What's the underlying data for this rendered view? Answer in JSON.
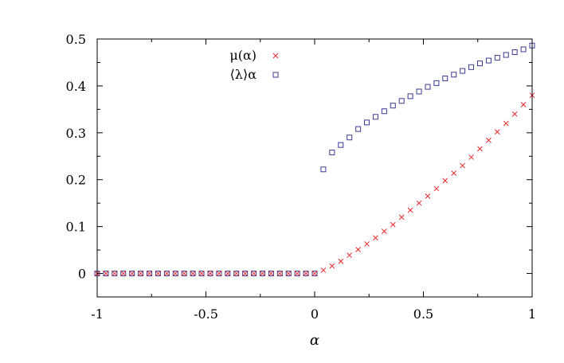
{
  "chart_data": {
    "type": "scatter",
    "title": "",
    "xlabel": "α",
    "ylabel": "",
    "xlim": [
      -1,
      1
    ],
    "ylim": [
      -0.05,
      0.5
    ],
    "x_ticks": [
      "-1",
      "-0.5",
      "0",
      "0.5",
      "1"
    ],
    "y_ticks": [
      "0",
      "0.1",
      "0.2",
      "0.3",
      "0.4",
      "0.5"
    ],
    "grid": false,
    "legend_position": "top-center",
    "series": [
      {
        "name": "μ(α)",
        "marker": "cross",
        "color": "#e8262b",
        "x": [
          -1,
          -0.96,
          -0.92,
          -0.88,
          -0.84,
          -0.8,
          -0.76,
          -0.72,
          -0.68,
          -0.64,
          -0.6,
          -0.56,
          -0.52,
          -0.48,
          -0.44,
          -0.4,
          -0.36,
          -0.32,
          -0.28,
          -0.24,
          -0.2,
          -0.16,
          -0.12,
          -0.08,
          -0.04,
          0,
          0.04,
          0.08,
          0.12,
          0.16,
          0.2,
          0.24,
          0.28,
          0.32,
          0.36,
          0.4,
          0.44,
          0.48,
          0.52,
          0.56,
          0.6,
          0.64,
          0.68,
          0.72,
          0.76,
          0.8,
          0.84,
          0.88,
          0.92,
          0.96,
          1
        ],
        "y": [
          0,
          0,
          0,
          0,
          0,
          0,
          0,
          0,
          0,
          0,
          0,
          0,
          0,
          0,
          0,
          0,
          0,
          0,
          0,
          0,
          0,
          0,
          0,
          0,
          0,
          0,
          0.007,
          0.016,
          0.026,
          0.039,
          0.051,
          0.063,
          0.076,
          0.09,
          0.104,
          0.12,
          0.135,
          0.15,
          0.165,
          0.181,
          0.198,
          0.214,
          0.23,
          0.248,
          0.266,
          0.284,
          0.302,
          0.32,
          0.34,
          0.36,
          0.38
        ]
      },
      {
        "name": "⟨λ⟩α",
        "marker": "square",
        "color": "#3b3b96",
        "x": [
          -1,
          -0.96,
          -0.92,
          -0.88,
          -0.84,
          -0.8,
          -0.76,
          -0.72,
          -0.68,
          -0.64,
          -0.6,
          -0.56,
          -0.52,
          -0.48,
          -0.44,
          -0.4,
          -0.36,
          -0.32,
          -0.28,
          -0.24,
          -0.2,
          -0.16,
          -0.12,
          -0.08,
          -0.04,
          0,
          0.04,
          0.08,
          0.12,
          0.16,
          0.2,
          0.24,
          0.28,
          0.32,
          0.36,
          0.4,
          0.44,
          0.48,
          0.52,
          0.56,
          0.6,
          0.64,
          0.68,
          0.72,
          0.76,
          0.8,
          0.84,
          0.88,
          0.92,
          0.96,
          1
        ],
        "y": [
          0,
          0,
          0,
          0,
          0,
          0,
          0,
          0,
          0,
          0,
          0,
          0,
          0,
          0,
          0,
          0,
          0,
          0,
          0,
          0,
          0,
          0,
          0,
          0,
          0,
          0,
          0.222,
          0.258,
          0.274,
          0.29,
          0.308,
          0.322,
          0.334,
          0.346,
          0.358,
          0.368,
          0.378,
          0.388,
          0.398,
          0.406,
          0.416,
          0.424,
          0.432,
          0.44,
          0.448,
          0.454,
          0.46,
          0.466,
          0.472,
          0.478,
          0.486
        ]
      }
    ]
  }
}
